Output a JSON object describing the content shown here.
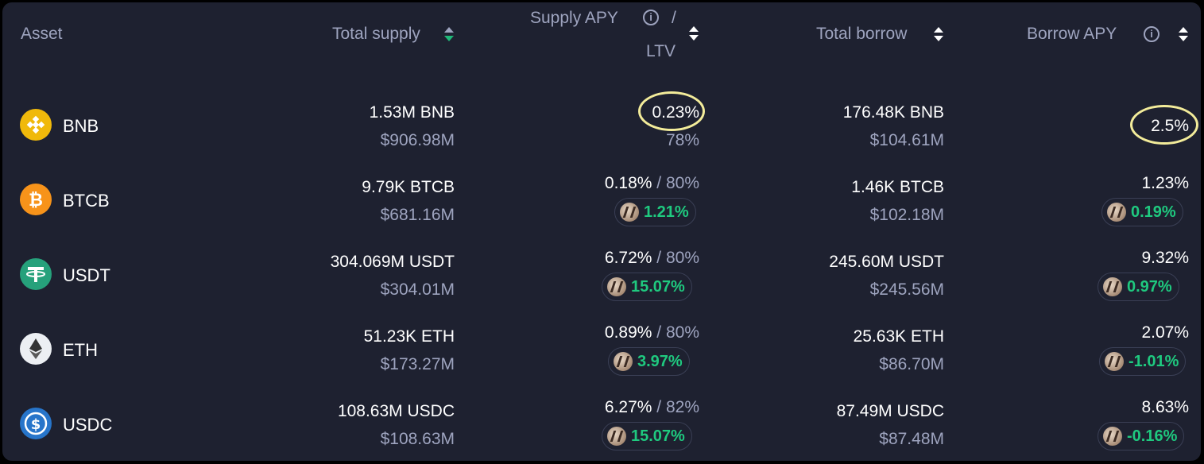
{
  "headers": {
    "asset": "Asset",
    "total_supply": "Total supply",
    "supply_apy": "Supply APY",
    "slash": "/",
    "ltv": "LTV",
    "total_borrow": "Total borrow",
    "borrow_apy": "Borrow APY",
    "info_glyph": "i"
  },
  "colors": {
    "background": "#1e2130",
    "text_primary": "#ffffff",
    "text_secondary": "#9ea4bf",
    "positive_green": "#1fc97f",
    "highlight_ring": "#f3ec9a"
  },
  "rows": [
    {
      "name": "BNB",
      "icon": "bnb-icon",
      "supply_amount": "1.53M BNB",
      "supply_usd": "$906.98M",
      "supply_apy": "0.23%",
      "ltv": "78%",
      "borrow_amount": "176.48K BNB",
      "borrow_usd": "$104.61M",
      "borrow_apy": "2.5%"
    },
    {
      "name": "BTCB",
      "icon": "btcb-icon",
      "supply_amount": "9.79K BTCB",
      "supply_usd": "$681.16M",
      "supply_apy": "0.18%",
      "ltv": " / 80%",
      "supply_reward": "1.21%",
      "borrow_amount": "1.46K BTCB",
      "borrow_usd": "$102.18M",
      "borrow_apy": "1.23%",
      "borrow_reward": "0.19%"
    },
    {
      "name": "USDT",
      "icon": "usdt-icon",
      "supply_amount": "304.069M USDT",
      "supply_usd": "$304.01M",
      "supply_apy": "6.72%",
      "ltv": " / 80%",
      "supply_reward": "15.07%",
      "borrow_amount": "245.60M USDT",
      "borrow_usd": "$245.56M",
      "borrow_apy": "9.32%",
      "borrow_reward": "0.97%"
    },
    {
      "name": "ETH",
      "icon": "eth-icon",
      "supply_amount": "51.23K ETH",
      "supply_usd": "$173.27M",
      "supply_apy": "0.89%",
      "ltv": " / 80%",
      "supply_reward": "3.97%",
      "borrow_amount": "25.63K ETH",
      "borrow_usd": "$86.70M",
      "borrow_apy": "2.07%",
      "borrow_reward": "-1.01%"
    },
    {
      "name": "USDC",
      "icon": "usdc-icon",
      "supply_amount": "108.63M USDC",
      "supply_usd": "$108.63M",
      "supply_apy": "6.27%",
      "ltv": " / 82%",
      "supply_reward": "15.07%",
      "borrow_amount": "87.49M USDC",
      "borrow_usd": "$87.48M",
      "borrow_apy": "8.63%",
      "borrow_reward": "-0.16%"
    }
  ]
}
